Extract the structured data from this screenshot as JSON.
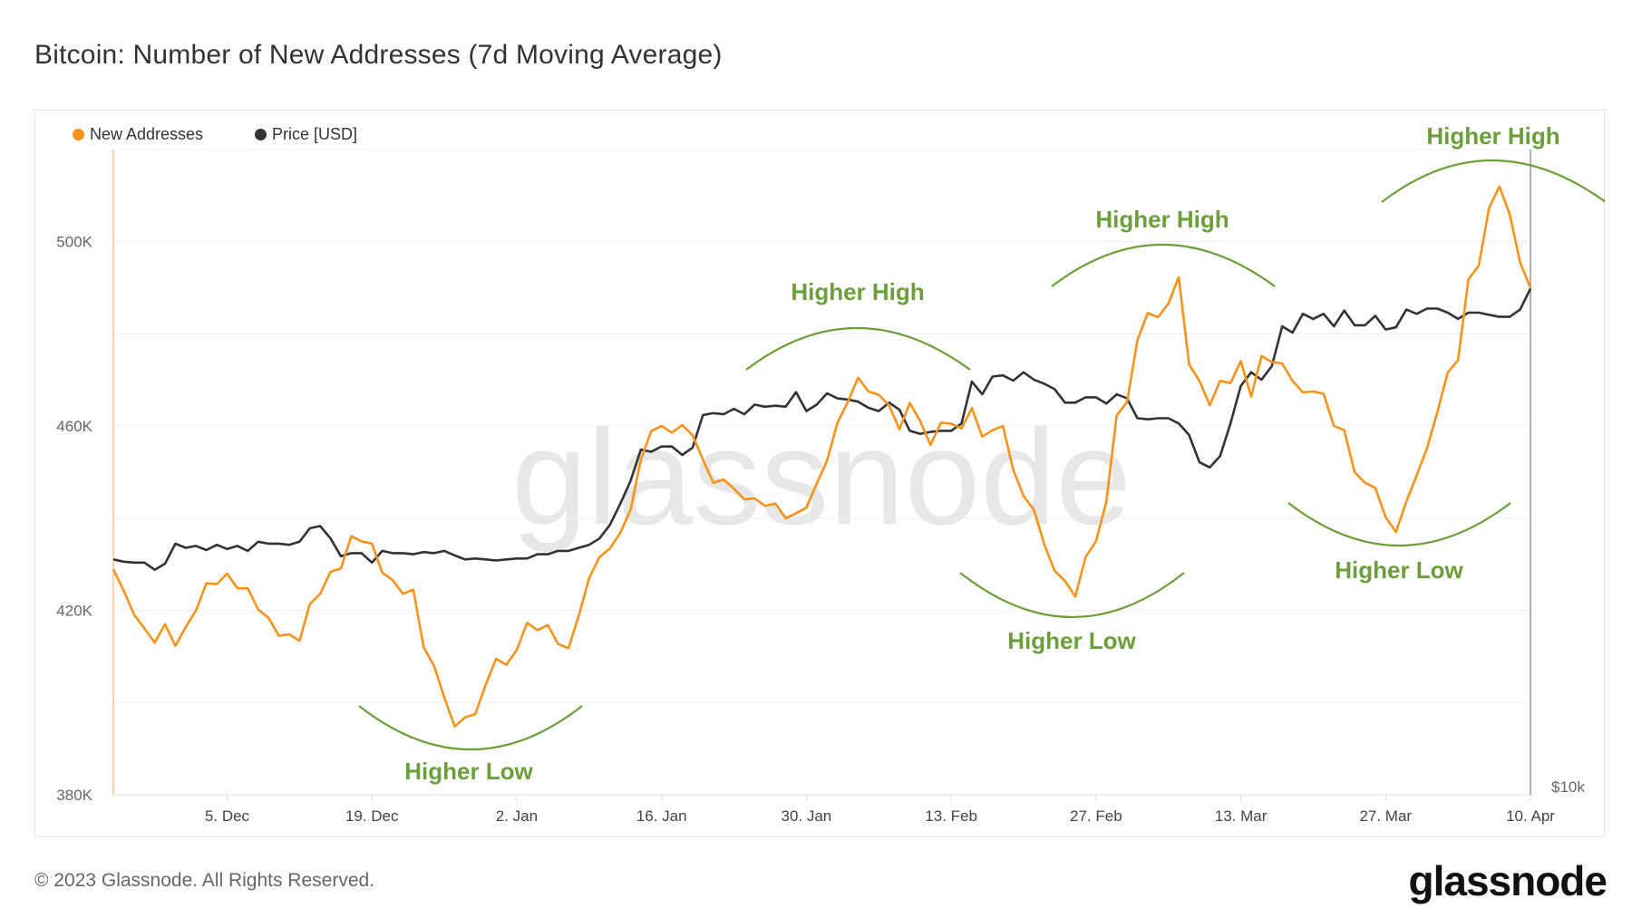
{
  "title": "Bitcoin: Number of New Addresses (7d Moving Average)",
  "footer": "© 2023 Glassnode. All Rights Reserved.",
  "logo": "glassnode",
  "watermark": "glassnode",
  "colors": {
    "new_addresses": "#F7931A",
    "price": "#333333",
    "annotation": "#6a9f3a"
  },
  "chart_data": {
    "type": "line",
    "title": "Bitcoin: Number of New Addresses (7d Moving Average)",
    "x_start": "2022-11-24",
    "x_end": "2023-04-10",
    "x_interval": "1 day",
    "legend_position": "top-left",
    "grid": true,
    "legend": [
      {
        "name": "New Addresses",
        "color": "#F7931A"
      },
      {
        "name": "Price [USD]",
        "color": "#333333"
      }
    ],
    "y_axis": {
      "ylim": [
        380000,
        520000
      ],
      "scale": "linear",
      "tick_labels": [
        {
          "label": "500K",
          "value": 500000
        },
        {
          "label": "460K",
          "value": 460000
        },
        {
          "label": "420K",
          "value": 420000
        },
        {
          "label": "380K",
          "value": 380000
        }
      ],
      "gridlines": [
        400000,
        420000,
        440000,
        460000,
        480000,
        500000,
        520000
      ]
    },
    "y2_axis": {
      "ylim": [
        10000,
        39400
      ],
      "scale": "log",
      "tick_labels": [
        {
          "label": "$10k",
          "value": 10000
        }
      ]
    },
    "x_ticks": [
      {
        "label": "5. Dec",
        "date": "2022-12-05"
      },
      {
        "label": "19. Dec",
        "date": "2022-12-19"
      },
      {
        "label": "2. Jan",
        "date": "2023-01-02"
      },
      {
        "label": "16. Jan",
        "date": "2023-01-16"
      },
      {
        "label": "30. Jan",
        "date": "2023-01-30"
      },
      {
        "label": "13. Feb",
        "date": "2023-02-13"
      },
      {
        "label": "27. Feb",
        "date": "2023-02-27"
      },
      {
        "label": "13. Mar",
        "date": "2023-03-13"
      },
      {
        "label": "27. Mar",
        "date": "2023-03-27"
      },
      {
        "label": "10. Apr",
        "date": "2023-04-10"
      }
    ],
    "series": [
      {
        "name": "New Addresses",
        "axis": "left",
        "values": [
          428900,
          424300,
          419100,
          416100,
          413000,
          417000,
          412300,
          416400,
          420000,
          425900,
          425700,
          428000,
          424800,
          424800,
          420200,
          418400,
          414500,
          414800,
          413400,
          421400,
          423600,
          428400,
          429100,
          436100,
          435000,
          434500,
          428200,
          426600,
          423600,
          424500,
          412000,
          408000,
          401100,
          394800,
          396800,
          397500,
          403900,
          409500,
          408200,
          411400,
          417300,
          415700,
          416800,
          412700,
          411800,
          418900,
          427000,
          431600,
          433400,
          436800,
          441800,
          452700,
          458900,
          460000,
          458600,
          460200,
          458000,
          452700,
          447700,
          448400,
          446400,
          444100,
          444300,
          442700,
          443200,
          440000,
          441100,
          442300,
          447500,
          452500,
          460700,
          465200,
          470500,
          467500,
          466800,
          464500,
          459300,
          465000,
          461100,
          455900,
          460700,
          460500,
          459500,
          463900,
          457700,
          459100,
          460000,
          450500,
          444800,
          441800,
          434300,
          428600,
          426400,
          423000,
          431600,
          435000,
          443600,
          462300,
          465200,
          478600,
          484500,
          483600,
          486600,
          492300,
          473400,
          469800,
          464500,
          469800,
          469300,
          474100,
          466400,
          475200,
          473900,
          473600,
          469800,
          467300,
          467500,
          467000,
          460000,
          459100,
          450000,
          447700,
          446600,
          440200,
          437000,
          443600,
          449300,
          455200,
          463000,
          471600,
          474300,
          491800,
          494800,
          507300,
          512000,
          505900,
          495500,
          490000
        ]
      },
      {
        "name": "Price [USD]",
        "axis": "right",
        "values": [
          16490,
          16410,
          16380,
          16380,
          16130,
          16340,
          17050,
          16900,
          16970,
          16820,
          17010,
          16860,
          16970,
          16790,
          17120,
          17050,
          17050,
          17010,
          17120,
          17620,
          17700,
          17240,
          16600,
          16710,
          16710,
          16380,
          16790,
          16710,
          16710,
          16670,
          16750,
          16710,
          16790,
          16630,
          16490,
          16520,
          16490,
          16450,
          16490,
          16520,
          16520,
          16670,
          16670,
          16790,
          16790,
          16900,
          17010,
          17240,
          17740,
          18550,
          19480,
          20820,
          20730,
          20960,
          20960,
          20590,
          20910,
          22410,
          22500,
          22450,
          22710,
          22450,
          22910,
          22810,
          22860,
          22810,
          23530,
          22600,
          22910,
          23470,
          23220,
          23160,
          23060,
          22760,
          22600,
          23010,
          22660,
          21670,
          21530,
          21620,
          21670,
          21670,
          22010,
          24060,
          23420,
          24320,
          24380,
          24110,
          24540,
          24160,
          23950,
          23680,
          23010,
          23010,
          23270,
          23270,
          22960,
          23420,
          23220,
          22260,
          22210,
          22260,
          22260,
          22010,
          21480,
          20270,
          20050,
          20540,
          22010,
          23840,
          24540,
          24160,
          24870,
          27060,
          26700,
          27790,
          27490,
          27790,
          27060,
          27980,
          27120,
          27120,
          27670,
          26880,
          27000,
          28040,
          27790,
          28100,
          28100,
          27860,
          27490,
          27860,
          27860,
          27730,
          27610,
          27610,
          28040,
          29320
        ]
      }
    ],
    "annotations": [
      {
        "label": "Higher Low",
        "shape": "arc-down"
      },
      {
        "label": "Higher High",
        "shape": "arc-up"
      },
      {
        "label": "Higher Low",
        "shape": "arc-down"
      },
      {
        "label": "Higher High",
        "shape": "arc-up"
      },
      {
        "label": "Higher Low",
        "shape": "arc-down"
      },
      {
        "label": "Higher High",
        "shape": "arc-up"
      }
    ]
  }
}
